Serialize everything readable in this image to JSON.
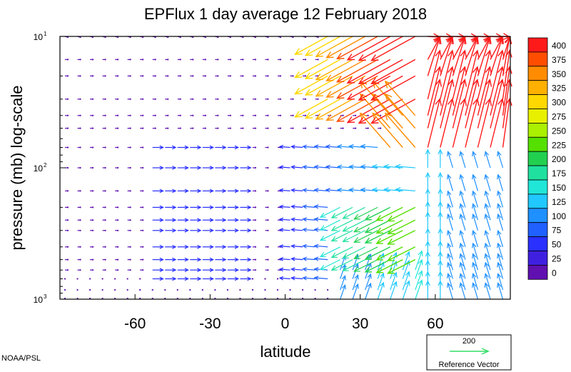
{
  "chart_data": {
    "type": "vector-field",
    "title": "EPFlux  1 day average  12 February  2018",
    "xlabel": "latitude",
    "ylabel": "pressure (mb)  log-scale",
    "x_ticks": [
      -60,
      -30,
      0,
      30,
      60
    ],
    "y_scale": "log",
    "y_ticks": [
      {
        "value": 10,
        "base": "10",
        "exp": "1"
      },
      {
        "value": 100,
        "base": "10",
        "exp": "2"
      },
      {
        "value": 1000,
        "base": "10",
        "exp": "3"
      }
    ],
    "xlim": [
      -90,
      90
    ],
    "ylim": [
      1000,
      10
    ],
    "colorbar": {
      "labels": [
        "400",
        "375",
        "350",
        "325",
        "300",
        "275",
        "250",
        "225",
        "200",
        "175",
        "150",
        "125",
        "100",
        "75",
        "50",
        "25",
        "0"
      ],
      "colors": [
        "#ff1a1a",
        "#ff4d00",
        "#ff8c00",
        "#ffb000",
        "#ffd800",
        "#e8f000",
        "#aaf000",
        "#55e000",
        "#22d050",
        "#20e0a0",
        "#20e6d8",
        "#20c8ff",
        "#1e90ff",
        "#2060ff",
        "#2a30ff",
        "#4020e0",
        "#6010b0"
      ]
    },
    "reference_vector": {
      "value": "200",
      "label": "Reference Vector",
      "color": "#33dd66"
    },
    "credit": "NOAA/PSL"
  }
}
